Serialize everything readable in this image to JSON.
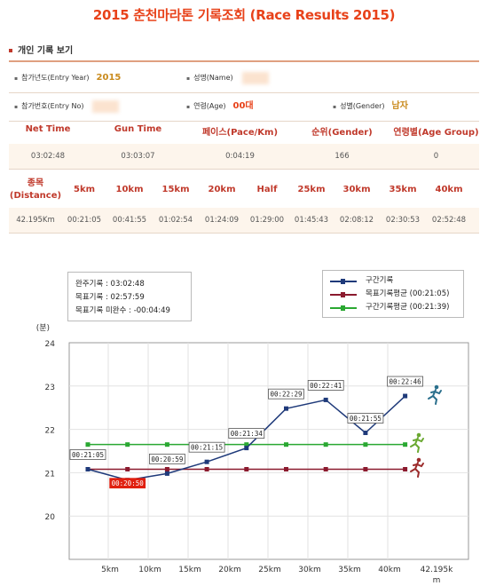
{
  "page": {
    "title": "2015 춘천마라톤 기록조회 (Race Results 2015)",
    "section": "개인 기록 보기"
  },
  "info": {
    "entry_year_label": "참가년도(Entry Year)",
    "entry_year": "2015",
    "name_label": "성명(Name)",
    "entry_no_label": "참가번호(Entry No)",
    "age_label": "연령(Age)",
    "age": "00대",
    "gender_label": "성별(Gender)",
    "gender": "남자"
  },
  "results": {
    "headers": [
      "Net Time",
      "Gun Time",
      "페이스(Pace/Km)",
      "순위(Gender)",
      "연령별(Age Group)"
    ],
    "values": [
      "03:02:48",
      "03:03:07",
      "0:04:19",
      "166",
      "0"
    ]
  },
  "splits": {
    "headers": [
      "종목\n(Distance)",
      "5km",
      "10km",
      "15km",
      "20km",
      "Half",
      "25km",
      "30km",
      "35km",
      "40km"
    ],
    "values": [
      "42.195Km",
      "00:21:05",
      "00:41:55",
      "01:02:54",
      "01:24:09",
      "01:29:00",
      "01:45:43",
      "02:08:12",
      "02:30:53",
      "02:52:48"
    ]
  },
  "summary": {
    "line1": "완주기록 : 03:02:48",
    "line2": "목표기록 : 02:57:59",
    "line3": "목표기록 미완수 : -00:04:49"
  },
  "legend": {
    "items": [
      "구간기록",
      "목표기록평균 (00:21:05)",
      "구간기록평균 (00:21:39)"
    ],
    "colors": [
      "#1f3a7a",
      "#8b1a2e",
      "#2aa832"
    ]
  },
  "chart_data": {
    "type": "line",
    "ylabel": "(분)",
    "ylim": [
      19,
      24
    ],
    "yticks": [
      "20",
      "21",
      "22",
      "23",
      "24"
    ],
    "xticks": [
      "5km",
      "10km",
      "15km",
      "20km",
      "25km",
      "30km",
      "35km",
      "40km",
      "42.195k\nm"
    ],
    "series": [
      {
        "name": "구간기록",
        "color": "#1f3a7a",
        "values": [
          21.08,
          20.83,
          20.98,
          21.25,
          21.57,
          22.48,
          22.68,
          21.92,
          22.77
        ],
        "labels": [
          "00:21:05",
          "00:20:50",
          "00:20:59",
          "00:21:15",
          "00:21:34",
          "00:22:29",
          "00:22:41",
          "00:21:55",
          "00:22:46"
        ]
      },
      {
        "name": "목표기록평균 (00:21:05)",
        "color": "#8b1a2e",
        "values": [
          21.08,
          21.08,
          21.08,
          21.08,
          21.08,
          21.08,
          21.08,
          21.08,
          21.08
        ]
      },
      {
        "name": "구간기록평균 (00:21:39)",
        "color": "#2aa832",
        "values": [
          21.65,
          21.65,
          21.65,
          21.65,
          21.65,
          21.65,
          21.65,
          21.65,
          21.65
        ]
      }
    ],
    "highlight_index": 1
  }
}
